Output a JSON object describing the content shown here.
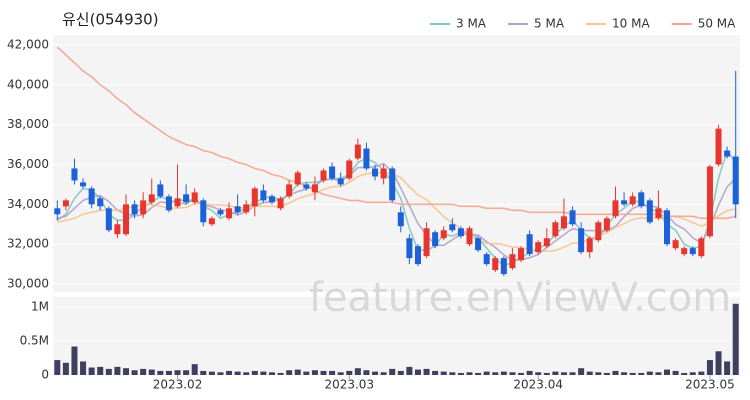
{
  "chart_data": {
    "type": "candlestick",
    "title": "유신(054930)",
    "watermark": "feature.enViewV.com",
    "categories": [
      null,
      null,
      null,
      null,
      null,
      null,
      null,
      null,
      null,
      null,
      null,
      null,
      null,
      null,
      "2023.02",
      null,
      null,
      null,
      null,
      null,
      null,
      null,
      null,
      null,
      null,
      null,
      null,
      null,
      null,
      null,
      null,
      null,
      null,
      null,
      "2023.03",
      null,
      null,
      null,
      null,
      null,
      null,
      null,
      null,
      null,
      null,
      null,
      null,
      null,
      null,
      null,
      null,
      null,
      null,
      null,
      null,
      null,
      "2023.04",
      null,
      null,
      null,
      null,
      null,
      null,
      null,
      null,
      null,
      null,
      null,
      null,
      null,
      null,
      null,
      null,
      null,
      null,
      null,
      "2023.05",
      null,
      null,
      null
    ],
    "open": [
      33800,
      33900,
      35800,
      35100,
      34800,
      34300,
      33800,
      32500,
      32500,
      34000,
      33500,
      34100,
      35000,
      34400,
      33900,
      34500,
      34100,
      34200,
      33000,
      33700,
      33300,
      33900,
      33600,
      33900,
      34700,
      34400,
      33800,
      34400,
      35000,
      35000,
      34600,
      35200,
      35900,
      35300,
      35300,
      36300,
      36800,
      35800,
      35300,
      35800,
      33600,
      32300,
      31900,
      31400,
      32600,
      32300,
      33000,
      32800,
      32000,
      32300,
      31500,
      30700,
      31300,
      30800,
      31200,
      32500,
      31600,
      31900,
      32400,
      32800,
      33700,
      32800,
      31600,
      32200,
      32700,
      33400,
      34200,
      34000,
      34600,
      34200,
      33300,
      33700,
      31800,
      31500,
      31800,
      31400,
      32400,
      36000,
      36700,
      36400
    ],
    "high": [
      34200,
      34300,
      36300,
      35300,
      34900,
      34400,
      33900,
      33200,
      34500,
      34200,
      34600,
      35300,
      35200,
      34500,
      36000,
      35000,
      34800,
      34300,
      33400,
      33800,
      34100,
      34500,
      34200,
      34900,
      35000,
      34500,
      34400,
      35200,
      35700,
      35100,
      35400,
      35800,
      36100,
      35600,
      36300,
      37300,
      37100,
      36000,
      36000,
      35900,
      33900,
      32500,
      32000,
      33100,
      32700,
      32900,
      33300,
      32900,
      32900,
      32400,
      31600,
      31400,
      31400,
      31800,
      31900,
      32700,
      32200,
      32800,
      33200,
      34300,
      33900,
      33100,
      32400,
      33200,
      33400,
      34900,
      34600,
      34600,
      34700,
      34300,
      34700,
      33800,
      32300,
      31900,
      31900,
      32400,
      36000,
      38000,
      36900,
      40700
    ],
    "low": [
      33200,
      33700,
      35000,
      34800,
      33800,
      33700,
      32600,
      32300,
      32400,
      33300,
      33300,
      34000,
      34300,
      33600,
      33800,
      34000,
      34000,
      32900,
      32900,
      33400,
      33200,
      33500,
      33500,
      33400,
      34100,
      34000,
      33700,
      34300,
      34900,
      34700,
      34200,
      35100,
      35200,
      34900,
      35200,
      36200,
      35700,
      35200,
      35000,
      34100,
      32600,
      31000,
      30900,
      31300,
      31800,
      32200,
      32600,
      32300,
      31900,
      31600,
      30900,
      30600,
      30400,
      30700,
      31100,
      31400,
      31500,
      31800,
      32300,
      32700,
      32900,
      31500,
      31300,
      32100,
      32600,
      33300,
      33900,
      33900,
      33800,
      33000,
      33200,
      31900,
      31700,
      31400,
      31400,
      31300,
      32300,
      35900,
      36300,
      33300
    ],
    "close": [
      33500,
      34200,
      35200,
      34900,
      34000,
      33900,
      32700,
      33000,
      34000,
      33500,
      34200,
      34500,
      34400,
      33700,
      34300,
      34100,
      34600,
      33100,
      33300,
      33500,
      33800,
      33600,
      34000,
      34800,
      34200,
      34100,
      34300,
      35000,
      35600,
      34800,
      35000,
      35700,
      35300,
      35000,
      36200,
      37000,
      35800,
      35400,
      35800,
      34200,
      32900,
      31300,
      31000,
      32800,
      31900,
      32700,
      32700,
      32400,
      32800,
      31700,
      31000,
      31300,
      30500,
      31500,
      31800,
      31500,
      32100,
      32300,
      33100,
      33400,
      33000,
      31600,
      32300,
      33100,
      33300,
      34200,
      34000,
      34400,
      33900,
      33100,
      33800,
      32000,
      32200,
      31800,
      31500,
      32300,
      35900,
      37800,
      36400,
      34000
    ],
    "up_color": "#e8362f",
    "down_color": "#1c61d8",
    "series": [
      {
        "name": "3 MA",
        "color": "#7cc9c0",
        "values": [
          33200,
          33500,
          34300,
          34800,
          34700,
          34300,
          33500,
          33200,
          33200,
          33500,
          33900,
          34100,
          34400,
          34200,
          34100,
          34000,
          34300,
          33900,
          33700,
          33300,
          33500,
          33600,
          33800,
          34100,
          34300,
          34400,
          34200,
          34500,
          35000,
          35100,
          35100,
          35200,
          35300,
          35300,
          35500,
          36100,
          36300,
          36100,
          35700,
          35100,
          34300,
          32800,
          31700,
          31700,
          31900,
          32500,
          32400,
          32600,
          32600,
          32300,
          31800,
          31300,
          30900,
          31100,
          31300,
          31600,
          31800,
          32000,
          32500,
          32900,
          33200,
          32700,
          32300,
          32300,
          32900,
          33500,
          33800,
          34200,
          34100,
          33800,
          33600,
          33000,
          32700,
          32000,
          31800,
          31900,
          33200,
          35300,
          36700,
          36100
        ]
      },
      {
        "name": "5 MA",
        "color": "#b5a0c8",
        "values": [
          33300,
          33400,
          33800,
          34200,
          34360,
          34440,
          34140,
          33700,
          33520,
          33420,
          33480,
          33840,
          34120,
          34060,
          34220,
          34200,
          34220,
          33960,
          33880,
          33720,
          33660,
          33460,
          33640,
          33940,
          34080,
          34140,
          34280,
          34480,
          34640,
          34760,
          34940,
          35220,
          35280,
          35160,
          35440,
          35840,
          35860,
          35880,
          36040,
          35640,
          34820,
          33920,
          33040,
          32440,
          31980,
          31940,
          32220,
          32500,
          32500,
          32460,
          32120,
          31840,
          31460,
          31200,
          31220,
          31320,
          31480,
          31840,
          32160,
          32480,
          32780,
          32680,
          32680,
          32680,
          32660,
          32900,
          33380,
          33800,
          33960,
          33920,
          33840,
          33440,
          33000,
          32760,
          32320,
          32060,
          32840,
          33960,
          34880,
          35300
        ]
      },
      {
        "name": "10 MA",
        "color": "#f5c48f",
        "values": [
          33100,
          33200,
          33300,
          33500,
          33600,
          33700,
          33700,
          33700,
          33800,
          33890,
          33960,
          33990,
          33910,
          33790,
          33820,
          33840,
          34030,
          34040,
          33970,
          33970,
          33930,
          33840,
          33800,
          33910,
          33900,
          33900,
          33870,
          34060,
          34290,
          34420,
          34540,
          34750,
          34880,
          34900,
          35100,
          35390,
          35540,
          35580,
          35600,
          35540,
          35330,
          34890,
          34460,
          34240,
          33810,
          33380,
          33070,
          32770,
          32470,
          32220,
          32030,
          32030,
          31980,
          31850,
          31840,
          31720,
          31660,
          31650,
          31680,
          31850,
          32050,
          32080,
          32260,
          32420,
          32570,
          32840,
          33030,
          33240,
          33320,
          33290,
          33370,
          33410,
          33400,
          33270,
          33090,
          32900,
          33090,
          33430,
          33680,
          33770
        ]
      },
      {
        "name": "50 MA",
        "color": "#f4a390",
        "values": [
          41900,
          41500,
          41100,
          40700,
          40400,
          40000,
          39700,
          39300,
          39000,
          38600,
          38300,
          38000,
          37700,
          37400,
          37200,
          37000,
          36900,
          36700,
          36600,
          36400,
          36300,
          36100,
          36000,
          35800,
          35700,
          35500,
          35400,
          35200,
          35100,
          34900,
          34700,
          34500,
          34400,
          34300,
          34200,
          34200,
          34100,
          34100,
          34100,
          34100,
          34000,
          34000,
          34000,
          34000,
          34000,
          34000,
          34000,
          33900,
          33900,
          33900,
          33800,
          33800,
          33800,
          33700,
          33700,
          33600,
          33600,
          33600,
          33600,
          33600,
          33500,
          33500,
          33500,
          33500,
          33500,
          33500,
          33500,
          33500,
          33500,
          33500,
          33500,
          33400,
          33400,
          33400,
          33400,
          33300,
          33300,
          33300,
          33300,
          33400
        ]
      }
    ],
    "ylim": [
      29600,
      42500
    ],
    "yticks": [
      {
        "value": 30000,
        "label": "30,000"
      },
      {
        "value": 32000,
        "label": "32,000"
      },
      {
        "value": 34000,
        "label": "34,000"
      },
      {
        "value": 36000,
        "label": "36,000"
      },
      {
        "value": 38000,
        "label": "38,000"
      },
      {
        "value": 40000,
        "label": "40,000"
      },
      {
        "value": 42000,
        "label": "42,000"
      }
    ],
    "grid": true,
    "volume": {
      "color": "#3f3f5f",
      "ylim": [
        0,
        1150000
      ],
      "yticks": [
        0,
        {
          "value": 500000,
          "label": "0.5M"
        },
        {
          "value": 1000000,
          "label": "1M"
        }
      ],
      "values": [
        220000,
        180000,
        420000,
        200000,
        110000,
        120000,
        90000,
        120000,
        100000,
        70000,
        90000,
        80000,
        60000,
        60000,
        70000,
        70000,
        160000,
        60000,
        50000,
        40000,
        60000,
        50000,
        40000,
        60000,
        50000,
        40000,
        30000,
        70000,
        80000,
        50000,
        70000,
        60000,
        60000,
        40000,
        60000,
        100000,
        70000,
        50000,
        40000,
        90000,
        60000,
        120000,
        80000,
        90000,
        60000,
        50000,
        40000,
        30000,
        40000,
        30000,
        50000,
        40000,
        50000,
        40000,
        30000,
        60000,
        40000,
        30000,
        50000,
        40000,
        40000,
        100000,
        50000,
        40000,
        30000,
        60000,
        40000,
        30000,
        30000,
        50000,
        40000,
        80000,
        60000,
        30000,
        40000,
        50000,
        220000,
        350000,
        200000,
        1050000
      ]
    }
  }
}
